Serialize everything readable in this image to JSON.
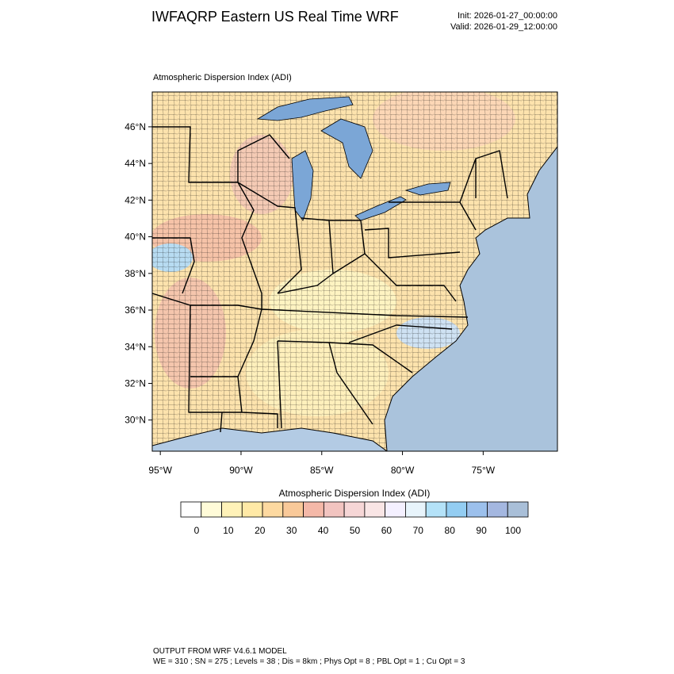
{
  "header": {
    "title": "IWFAQRP Eastern US Real Time WRF",
    "init": "Init: 2026-01-27_00:00:00",
    "valid": "Valid: 2026-01-29_12:00:00"
  },
  "map": {
    "title": "Atmospheric Dispersion Index   (ADI)",
    "lat_range": [
      28.3,
      47.9
    ],
    "lon_range": [
      -95.5,
      -70.4
    ],
    "lat_ticks": [
      {
        "value": 46,
        "label": "46°N"
      },
      {
        "value": 44,
        "label": "44°N"
      },
      {
        "value": 42,
        "label": "42°N"
      },
      {
        "value": 40,
        "label": "40°N"
      },
      {
        "value": 38,
        "label": "38°N"
      },
      {
        "value": 36,
        "label": "36°N"
      },
      {
        "value": 34,
        "label": "34°N"
      },
      {
        "value": 32,
        "label": "32°N"
      },
      {
        "value": 30,
        "label": "30°N"
      }
    ],
    "lon_ticks": [
      {
        "value": -95,
        "label": "95°W"
      },
      {
        "value": -90,
        "label": "90°W"
      },
      {
        "value": -85,
        "label": "85°W"
      },
      {
        "value": -80,
        "label": "80°W"
      },
      {
        "value": -75,
        "label": "75°W"
      }
    ]
  },
  "colorbar": {
    "title": "Atmospheric Dispersion Index  (ADI)",
    "colors": [
      "#ffffff",
      "#fffbd8",
      "#fff2b8",
      "#ffe9a6",
      "#fdd9a0",
      "#f9c999",
      "#f4b8a8",
      "#f2c4c0",
      "#f6d6d6",
      "#f9e5e5",
      "#f4f0ff",
      "#e8f4fb",
      "#b4e2f8",
      "#93cdf2",
      "#9cc0ec",
      "#a4b7e0",
      "#a9bfd8"
    ],
    "ticks": [
      0,
      10,
      20,
      30,
      40,
      50,
      60,
      70,
      80,
      90,
      100
    ]
  },
  "footer": {
    "line1": "OUTPUT FROM WRF V4.6.1 MODEL",
    "line2": "WE = 310 ; SN = 275 ; Levels = 38 ; Dis = 8km ; Phys Opt = 8 ; PBL Opt = 1 ; Cu Opt = 3"
  }
}
